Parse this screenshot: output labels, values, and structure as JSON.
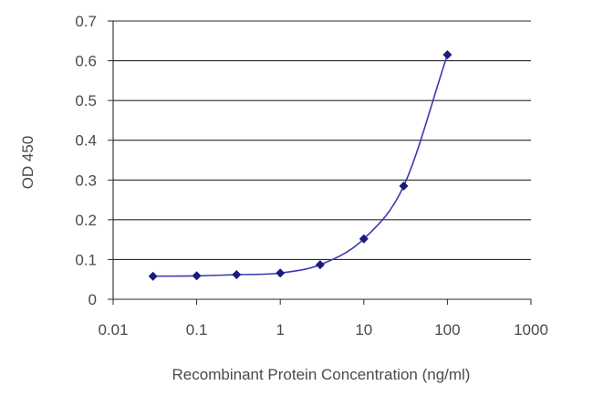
{
  "chart_data": {
    "type": "line",
    "title": "",
    "xlabel": "Recombinant Protein Concentration (ng/ml)",
    "ylabel": "OD 450",
    "xscale": "log",
    "xlim": [
      0.01,
      1000
    ],
    "ylim": [
      0,
      0.7
    ],
    "xticks": [
      "0.01",
      "0.1",
      "1",
      "10",
      "100",
      "1000"
    ],
    "yticks": [
      "0",
      "0.1",
      "0.2",
      "0.3",
      "0.4",
      "0.5",
      "0.6",
      "0.7"
    ],
    "grid": "horizontal",
    "legend": "none",
    "line_color": "#3a3ab0",
    "marker_color": "#1a1a80",
    "marker": "diamond",
    "series": [
      {
        "x": [
          0.03,
          0.1,
          0.3,
          1,
          3,
          10,
          30,
          100
        ],
        "y": [
          0.058,
          0.059,
          0.062,
          0.066,
          0.087,
          0.152,
          0.285,
          0.615
        ]
      }
    ]
  }
}
